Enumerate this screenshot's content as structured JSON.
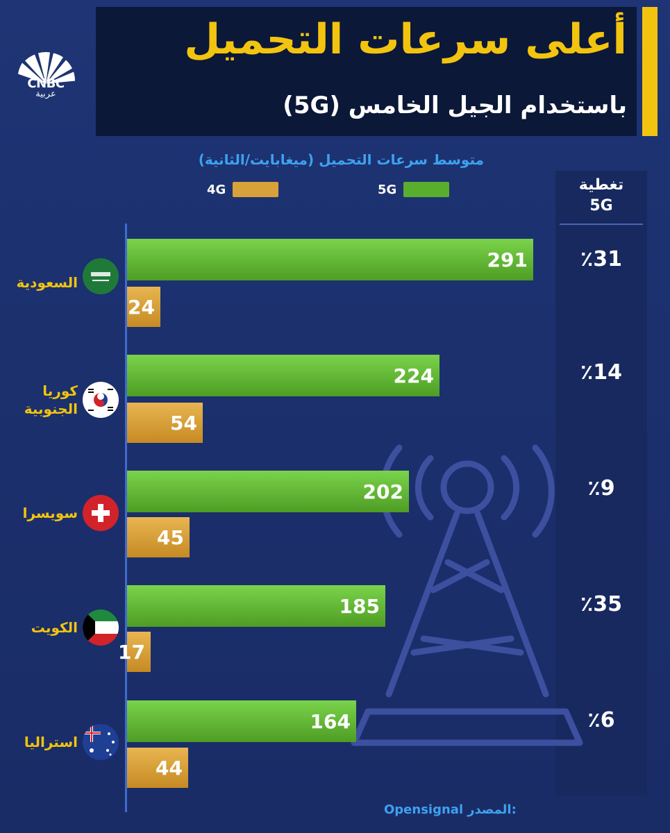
{
  "header": {
    "title": "أعلى سرعات التحميل",
    "subtitle": "باستخدام الجيل الخامس (5G)",
    "logo_text": "CNBC",
    "logo_subtext": "عربية"
  },
  "coverage": {
    "header": "تغطية\n5G",
    "values": [
      "٪31",
      "٪14",
      "٪9",
      "٪35",
      "٪6"
    ]
  },
  "source": {
    "label": "المصدر:",
    "value": "Opensignal"
  },
  "colors": {
    "g5": "#5aae2e",
    "g4": "#d9a13a",
    "accent": "#f2c40f",
    "background": "#1e3474"
  },
  "chart_data": {
    "type": "bar",
    "orientation": "horizontal",
    "title": "متوسط سرعات التحميل (ميغابايت/الثانية)",
    "categories": [
      "السعودية",
      "كوريا الجنوبية",
      "سويسرا",
      "الكويت",
      "استراليا"
    ],
    "series": [
      {
        "name": "5G",
        "values": [
          291,
          224,
          202,
          185,
          164
        ]
      },
      {
        "name": "4G",
        "values": [
          24,
          54,
          45,
          17,
          44
        ]
      }
    ],
    "xlim": [
      0,
      300
    ],
    "grid": false,
    "legend": "top"
  }
}
